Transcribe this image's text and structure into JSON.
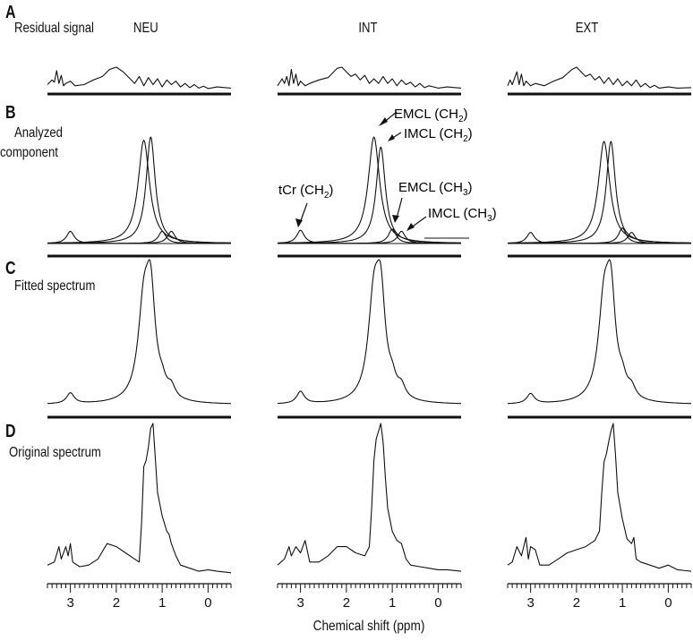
{
  "columns": [
    "NEU",
    "INT",
    "EXT"
  ],
  "rows": [
    {
      "letter": "A",
      "title": "Residual signal"
    },
    {
      "letter": "B",
      "title_lines": [
        "Analyzed",
        "component"
      ]
    },
    {
      "letter": "C",
      "title": "Fitted spectrum"
    },
    {
      "letter": "D",
      "title": "Original spectrum"
    }
  ],
  "peak_labels": [
    {
      "text": "EMCL (CH",
      "sub": "2",
      "close": ")"
    },
    {
      "text": "IMCL (CH",
      "sub": "2",
      "close": ")"
    },
    {
      "text": "tCr (CH",
      "sub": "2",
      "close": ")"
    },
    {
      "text": "EMCL (CH",
      "sub": "3",
      "close": ")"
    },
    {
      "text": "IMCL (CH",
      "sub": "3",
      "close": ")"
    }
  ],
  "chart_data": {
    "type": "line",
    "xlabel": "Chemical shift (ppm)",
    "x_ticks": [
      "3",
      "2",
      "1",
      "0"
    ],
    "xlim": [
      3.5,
      -0.5
    ],
    "x_reversed": true,
    "columns": [
      "NEU",
      "INT",
      "EXT"
    ],
    "components": {
      "tCr": {
        "center": 3.0,
        "width": 0.1
      },
      "EMCL_CH2": {
        "center": 1.4,
        "width": 0.15
      },
      "IMCL_CH2": {
        "center": 1.25,
        "width": 0.12
      },
      "EMCL_CH3": {
        "center": 1.0,
        "width": 0.1
      },
      "IMCL_CH3": {
        "center": 0.8,
        "width": 0.1
      }
    },
    "panels": {
      "NEU": {
        "B_amplitudes": {
          "tCr": 0.11,
          "EMCL_CH2": 0.93,
          "IMCL_CH2": 0.96,
          "EMCL_CH3": 0.11,
          "IMCL_CH3": 0.11
        },
        "C_peak": 1.0,
        "D_points": [
          [
            3.5,
            0.08
          ],
          [
            3.35,
            0.1
          ],
          [
            3.25,
            0.2
          ],
          [
            3.2,
            0.12
          ],
          [
            3.1,
            0.2
          ],
          [
            3.05,
            0.14
          ],
          [
            3.0,
            0.22
          ],
          [
            2.95,
            0.1
          ],
          [
            2.8,
            0.07
          ],
          [
            2.6,
            0.08
          ],
          [
            2.4,
            0.12
          ],
          [
            2.2,
            0.22
          ],
          [
            2.0,
            0.2
          ],
          [
            1.8,
            0.16
          ],
          [
            1.6,
            0.12
          ],
          [
            1.5,
            0.1
          ],
          [
            1.45,
            0.35
          ],
          [
            1.4,
            0.72
          ],
          [
            1.35,
            0.76
          ],
          [
            1.3,
            0.85
          ],
          [
            1.25,
            0.97
          ],
          [
            1.2,
            1.0
          ],
          [
            1.15,
            0.78
          ],
          [
            1.1,
            0.55
          ],
          [
            1.0,
            0.4
          ],
          [
            0.9,
            0.3
          ],
          [
            0.85,
            0.28
          ],
          [
            0.8,
            0.22
          ],
          [
            0.7,
            0.14
          ],
          [
            0.6,
            0.08
          ],
          [
            0.4,
            0.06
          ],
          [
            0.2,
            0.04
          ],
          [
            0.0,
            0.05
          ],
          [
            -0.2,
            0.04
          ],
          [
            -0.5,
            0.03
          ]
        ],
        "A_points": [
          [
            3.5,
            0.25
          ],
          [
            3.4,
            0.45
          ],
          [
            3.35,
            0.35
          ],
          [
            3.3,
            0.85
          ],
          [
            3.25,
            0.3
          ],
          [
            3.2,
            0.65
          ],
          [
            3.15,
            0.2
          ],
          [
            3.1,
            0.3
          ],
          [
            3.0,
            0.4
          ],
          [
            2.9,
            0.2
          ],
          [
            2.7,
            0.25
          ],
          [
            2.5,
            0.45
          ],
          [
            2.3,
            0.6
          ],
          [
            2.15,
            0.9
          ],
          [
            2.0,
            1.0
          ],
          [
            1.85,
            0.8
          ],
          [
            1.7,
            0.5
          ],
          [
            1.6,
            0.3
          ],
          [
            1.5,
            0.6
          ],
          [
            1.4,
            0.2
          ],
          [
            1.3,
            0.55
          ],
          [
            1.2,
            0.25
          ],
          [
            1.1,
            0.5
          ],
          [
            1.0,
            0.15
          ],
          [
            0.9,
            0.45
          ],
          [
            0.8,
            0.25
          ],
          [
            0.7,
            0.4
          ],
          [
            0.6,
            0.15
          ],
          [
            0.5,
            0.3
          ],
          [
            0.4,
            0.12
          ],
          [
            0.3,
            0.25
          ],
          [
            0.2,
            0.1
          ],
          [
            0.1,
            0.18
          ],
          [
            0.0,
            0.08
          ],
          [
            -0.2,
            0.15
          ],
          [
            -0.5,
            0.1
          ]
        ]
      },
      "INT": {
        "B_amplitudes": {
          "tCr": 0.12,
          "EMCL_CH2": 0.96,
          "IMCL_CH2": 0.87,
          "EMCL_CH3": 0.13,
          "IMCL_CH3": 0.11
        },
        "C_peak": 1.0,
        "D_points": [
          [
            3.5,
            0.08
          ],
          [
            3.35,
            0.12
          ],
          [
            3.25,
            0.2
          ],
          [
            3.2,
            0.14
          ],
          [
            3.1,
            0.2
          ],
          [
            3.0,
            0.16
          ],
          [
            2.9,
            0.24
          ],
          [
            2.8,
            0.1
          ],
          [
            2.6,
            0.1
          ],
          [
            2.4,
            0.14
          ],
          [
            2.2,
            0.2
          ],
          [
            2.0,
            0.2
          ],
          [
            1.8,
            0.16
          ],
          [
            1.6,
            0.14
          ],
          [
            1.5,
            0.2
          ],
          [
            1.45,
            0.45
          ],
          [
            1.4,
            0.76
          ],
          [
            1.35,
            0.9
          ],
          [
            1.3,
            0.95
          ],
          [
            1.25,
            1.0
          ],
          [
            1.2,
            0.88
          ],
          [
            1.15,
            0.65
          ],
          [
            1.1,
            0.45
          ],
          [
            1.0,
            0.3
          ],
          [
            0.9,
            0.24
          ],
          [
            0.8,
            0.22
          ],
          [
            0.7,
            0.12
          ],
          [
            0.6,
            0.08
          ],
          [
            0.4,
            0.07
          ],
          [
            0.2,
            0.06
          ],
          [
            0.0,
            0.05
          ],
          [
            -0.2,
            0.05
          ],
          [
            -0.5,
            0.04
          ]
        ],
        "A_points": [
          [
            3.5,
            0.2
          ],
          [
            3.4,
            0.5
          ],
          [
            3.35,
            0.3
          ],
          [
            3.3,
            0.6
          ],
          [
            3.25,
            0.2
          ],
          [
            3.2,
            0.9
          ],
          [
            3.15,
            0.3
          ],
          [
            3.1,
            0.7
          ],
          [
            3.05,
            0.2
          ],
          [
            3.0,
            0.4
          ],
          [
            2.9,
            0.2
          ],
          [
            2.8,
            0.3
          ],
          [
            2.6,
            0.45
          ],
          [
            2.4,
            0.55
          ],
          [
            2.2,
            0.95
          ],
          [
            2.1,
            1.0
          ],
          [
            2.0,
            0.8
          ],
          [
            1.9,
            0.6
          ],
          [
            1.8,
            0.7
          ],
          [
            1.7,
            0.45
          ],
          [
            1.6,
            0.65
          ],
          [
            1.5,
            0.3
          ],
          [
            1.4,
            0.5
          ],
          [
            1.3,
            0.3
          ],
          [
            1.2,
            0.6
          ],
          [
            1.1,
            0.3
          ],
          [
            1.0,
            0.5
          ],
          [
            0.9,
            0.2
          ],
          [
            0.8,
            0.45
          ],
          [
            0.7,
            0.25
          ],
          [
            0.6,
            0.35
          ],
          [
            0.5,
            0.15
          ],
          [
            0.4,
            0.3
          ],
          [
            0.3,
            0.12
          ],
          [
            0.2,
            0.2
          ],
          [
            0.0,
            0.1
          ],
          [
            -0.2,
            0.15
          ],
          [
            -0.5,
            0.1
          ]
        ]
      },
      "EXT": {
        "B_amplitudes": {
          "tCr": 0.1,
          "EMCL_CH2": 0.92,
          "IMCL_CH2": 0.92,
          "EMCL_CH3": 0.14,
          "IMCL_CH3": 0.1
        },
        "C_peak": 1.0,
        "D_points": [
          [
            3.5,
            0.08
          ],
          [
            3.4,
            0.1
          ],
          [
            3.3,
            0.2
          ],
          [
            3.2,
            0.14
          ],
          [
            3.1,
            0.26
          ],
          [
            3.05,
            0.12
          ],
          [
            3.0,
            0.2
          ],
          [
            2.9,
            0.18
          ],
          [
            2.8,
            0.08
          ],
          [
            2.6,
            0.08
          ],
          [
            2.4,
            0.12
          ],
          [
            2.2,
            0.16
          ],
          [
            2.0,
            0.18
          ],
          [
            1.8,
            0.2
          ],
          [
            1.6,
            0.24
          ],
          [
            1.5,
            0.3
          ],
          [
            1.45,
            0.55
          ],
          [
            1.4,
            0.75
          ],
          [
            1.35,
            0.8
          ],
          [
            1.3,
            0.88
          ],
          [
            1.25,
            0.95
          ],
          [
            1.2,
            1.0
          ],
          [
            1.15,
            0.8
          ],
          [
            1.1,
            0.55
          ],
          [
            1.0,
            0.38
          ],
          [
            0.9,
            0.25
          ],
          [
            0.8,
            0.22
          ],
          [
            0.75,
            0.26
          ],
          [
            0.7,
            0.12
          ],
          [
            0.6,
            0.1
          ],
          [
            0.4,
            0.08
          ],
          [
            0.2,
            0.06
          ],
          [
            0.0,
            0.08
          ],
          [
            -0.2,
            0.05
          ],
          [
            -0.5,
            0.04
          ]
        ],
        "A_points": [
          [
            3.5,
            0.2
          ],
          [
            3.45,
            0.45
          ],
          [
            3.4,
            0.25
          ],
          [
            3.3,
            0.8
          ],
          [
            3.25,
            0.25
          ],
          [
            3.2,
            0.7
          ],
          [
            3.15,
            0.2
          ],
          [
            3.1,
            0.4
          ],
          [
            3.0,
            0.2
          ],
          [
            2.9,
            0.3
          ],
          [
            2.7,
            0.2
          ],
          [
            2.5,
            0.4
          ],
          [
            2.3,
            0.55
          ],
          [
            2.1,
            0.9
          ],
          [
            2.0,
            1.0
          ],
          [
            1.9,
            0.8
          ],
          [
            1.8,
            0.6
          ],
          [
            1.7,
            0.7
          ],
          [
            1.6,
            0.45
          ],
          [
            1.5,
            0.6
          ],
          [
            1.4,
            0.3
          ],
          [
            1.3,
            0.55
          ],
          [
            1.2,
            0.25
          ],
          [
            1.1,
            0.5
          ],
          [
            1.0,
            0.2
          ],
          [
            0.9,
            0.4
          ],
          [
            0.8,
            0.2
          ],
          [
            0.7,
            0.45
          ],
          [
            0.6,
            0.15
          ],
          [
            0.5,
            0.3
          ],
          [
            0.4,
            0.12
          ],
          [
            0.3,
            0.22
          ],
          [
            0.2,
            0.1
          ],
          [
            0.0,
            0.15
          ],
          [
            -0.2,
            0.1
          ],
          [
            -0.5,
            0.12
          ]
        ]
      }
    }
  }
}
